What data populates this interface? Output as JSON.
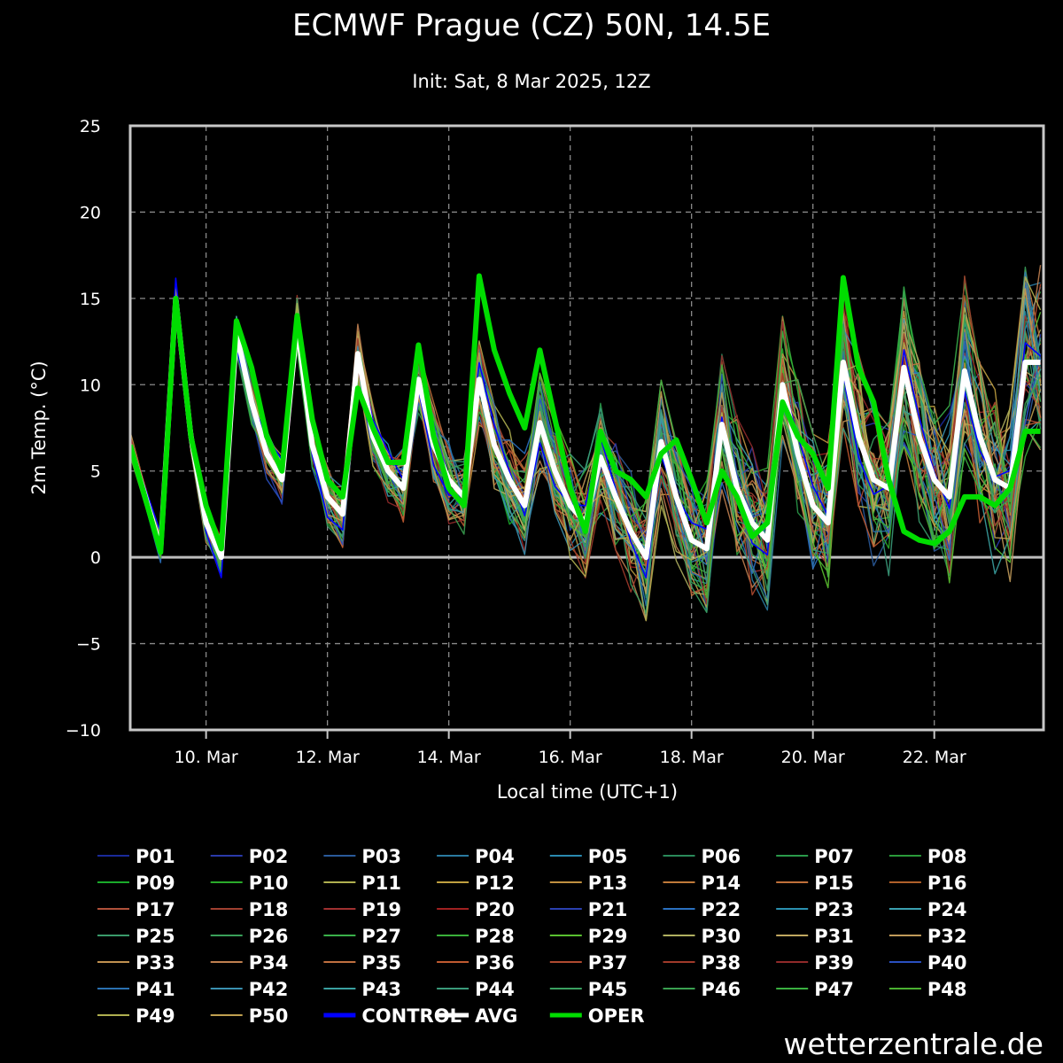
{
  "chart_data": {
    "type": "line",
    "title": "ECMWF Prague (CZ) 50N, 14.5E",
    "subtitle": "Init: Sat, 8 Mar 2025, 12Z",
    "xlabel": "Local time (UTC+1)",
    "ylabel": "2m Temp. (°C)",
    "ylim": [
      -10,
      25
    ],
    "xlim_days": [
      8.75,
      23.8
    ],
    "yticks": [
      25,
      20,
      15,
      10,
      5,
      0,
      -5,
      -10
    ],
    "ytick_labels": [
      "25",
      "20",
      "15",
      "10",
      "5",
      "0",
      "−5",
      "−10"
    ],
    "xticks": [
      {
        "day": 10,
        "label": "10. Mar"
      },
      {
        "day": 12,
        "label": "12. Mar"
      },
      {
        "day": 14,
        "label": "14. Mar"
      },
      {
        "day": 16,
        "label": "16. Mar"
      },
      {
        "day": 18,
        "label": "18. Mar"
      },
      {
        "day": 20,
        "label": "20. Mar"
      },
      {
        "day": 22,
        "label": "22. Mar"
      }
    ],
    "grid": true,
    "legend_position": "bottom",
    "x_days": [
      8.75,
      9.25,
      9.5,
      9.75,
      10.0,
      10.25,
      10.5,
      10.75,
      11.0,
      11.25,
      11.5,
      11.75,
      12.0,
      12.25,
      12.5,
      12.75,
      13.0,
      13.25,
      13.5,
      13.75,
      14.0,
      14.25,
      14.5,
      14.75,
      15.0,
      15.25,
      15.5,
      15.75,
      16.0,
      16.25,
      16.5,
      16.75,
      17.0,
      17.25,
      17.5,
      17.75,
      18.0,
      18.25,
      18.5,
      18.75,
      19.0,
      19.25,
      19.5,
      19.75,
      20.0,
      20.25,
      20.5,
      20.75,
      21.0,
      21.25,
      21.5,
      21.75,
      22.0,
      22.25,
      22.5,
      22.75,
      23.0,
      23.25,
      23.5,
      23.75
    ],
    "avg": [
      6.5,
      0.5,
      15.0,
      7.0,
      2.0,
      0.0,
      13.0,
      9.0,
      6.0,
      4.5,
      13.5,
      6.5,
      3.5,
      2.5,
      11.8,
      7.0,
      5.0,
      4.0,
      10.3,
      6.5,
      4.5,
      3.5,
      10.3,
      6.5,
      4.5,
      3.0,
      7.8,
      5.0,
      3.0,
      2.0,
      5.8,
      3.5,
      1.5,
      0.0,
      6.7,
      3.5,
      1.0,
      0.5,
      7.7,
      4.0,
      2.0,
      1.0,
      10.0,
      6.0,
      3.0,
      2.0,
      11.3,
      7.0,
      4.5,
      4.0,
      11.0,
      7.0,
      4.5,
      3.5,
      10.8,
      7.0,
      4.5,
      4.0,
      11.3,
      11.3
    ],
    "oper": [
      6.5,
      0.3,
      15.0,
      7.0,
      3.0,
      0.5,
      13.7,
      11.0,
      7.0,
      5.0,
      14.0,
      8.0,
      4.5,
      3.5,
      9.8,
      7.5,
      5.5,
      5.5,
      12.3,
      7.0,
      4.0,
      3.0,
      16.3,
      12.0,
      9.5,
      7.5,
      12.0,
      8.0,
      4.0,
      1.5,
      7.3,
      5.0,
      4.5,
      3.5,
      6.0,
      6.8,
      4.5,
      2.0,
      5.0,
      3.5,
      1.2,
      2.0,
      9.0,
      7.0,
      6.0,
      4.0,
      16.2,
      11.0,
      9.0,
      4.5,
      1.5,
      1.0,
      0.8,
      1.5,
      3.5,
      3.5,
      3.0,
      4.0,
      7.3,
      7.3
    ],
    "legend": [
      "P01",
      "P02",
      "P03",
      "P04",
      "P05",
      "P06",
      "P07",
      "P08",
      "P09",
      "P10",
      "P11",
      "P12",
      "P13",
      "P14",
      "P15",
      "P16",
      "P17",
      "P18",
      "P19",
      "P20",
      "P21",
      "P22",
      "P23",
      "P24",
      "P25",
      "P26",
      "P27",
      "P28",
      "P29",
      "P30",
      "P31",
      "P32",
      "P33",
      "P34",
      "P35",
      "P36",
      "P37",
      "P38",
      "P39",
      "P40",
      "P41",
      "P42",
      "P43",
      "P44",
      "P45",
      "P46",
      "P47",
      "P48",
      "P49",
      "P50",
      "CONTROL",
      "AVG",
      "OPER"
    ],
    "colors": {
      "background": "#000000",
      "grid": "#8a8a8a",
      "frame": "#c8c8c8",
      "control": "#0000ff",
      "avg": "#ffffff",
      "oper": "#00dd00",
      "members": [
        "#1a2a9a",
        "#2a3aaa",
        "#2a5a9a",
        "#2a7aa0",
        "#2a8ab0",
        "#2a8a5a",
        "#2a9a4a",
        "#2a9a3a",
        "#1aaa2a",
        "#2aaa2a",
        "#b0b050",
        "#c0a040",
        "#c09040",
        "#c07a3a",
        "#c0703a",
        "#b0602a",
        "#b0503a",
        "#a04030",
        "#a03030",
        "#a02020",
        "#2a40b0",
        "#2a70c0",
        "#2a90b0",
        "#3aa0b0",
        "#3a9a6a",
        "#3aa05a",
        "#3ab04a",
        "#3ab03a",
        "#5ac030",
        "#b0b060",
        "#c0a860",
        "#c09a5a",
        "#c09050",
        "#c08050",
        "#c07040",
        "#c05a30",
        "#b04a30",
        "#a03a2a",
        "#902a2a",
        "#2a50c0",
        "#2a70b0",
        "#3a90b0",
        "#3aa0a0",
        "#3a9a7a",
        "#3aa060",
        "#3aa050",
        "#3ab040",
        "#4ab030",
        "#b0b050",
        "#c0a050"
      ]
    }
  },
  "watermark": "wetterzentrale.de"
}
